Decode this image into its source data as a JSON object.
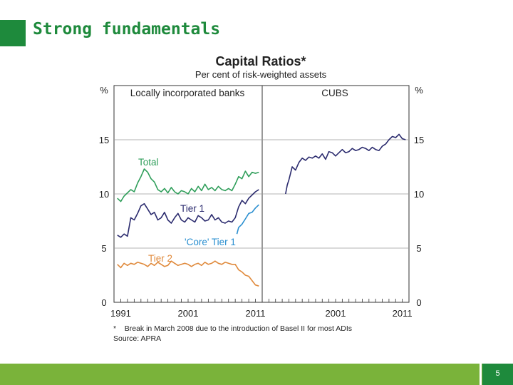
{
  "slide": {
    "title": "Strong fundamentals",
    "page_number": "5"
  },
  "colors": {
    "brand_green": "#1e8a3c",
    "footer_green": "#7ab33a",
    "total": "#2f9e5a",
    "tier1": "#2b2b6e",
    "core": "#2a8fd0",
    "tier2": "#e08a3c",
    "cubs": "#2b2b6e"
  },
  "chart_data": {
    "type": "line",
    "title": "Capital Ratios*",
    "subtitle": "Per cent of risk-weighted assets",
    "ylabel_left": "%",
    "ylabel_right": "%",
    "ylim": [
      0,
      20
    ],
    "yticks": [
      "0",
      "5",
      "10",
      "15"
    ],
    "yticks_right": [
      "0",
      "5",
      "10",
      "15"
    ],
    "grid": true,
    "footnote": "*    Break in March 2008 due to the introduction of Basel II for most ADIs",
    "source": "Source: APRA",
    "panels": [
      {
        "title": "Locally incorporated banks",
        "xlim": [
          1990,
          2012
        ],
        "xticks": [
          "1991",
          "2001",
          "2011"
        ],
        "series": [
          {
            "name": "Total",
            "x": [
              1990.5,
              1991,
              1991.5,
              1992,
              1992.5,
              1993,
              1993.5,
              1994,
              1994.5,
              1995,
              1995.5,
              1996,
              1996.5,
              1997,
              1997.5,
              1998,
              1998.5,
              1999,
              1999.5,
              2000,
              2000.5,
              2001,
              2001.5,
              2002,
              2002.5,
              2003,
              2003.5,
              2004,
              2004.5,
              2005,
              2005.5,
              2006,
              2006.5,
              2007,
              2007.5,
              2008,
              2008.5,
              2009,
              2009.5,
              2010,
              2010.5,
              2011,
              2011.5
            ],
            "y": [
              9.6,
              9.3,
              9.8,
              10.1,
              10.4,
              10.2,
              11.0,
              11.6,
              12.3,
              12.0,
              11.4,
              11.1,
              10.4,
              10.2,
              10.5,
              10.1,
              10.6,
              10.2,
              10.0,
              10.3,
              10.2,
              10.0,
              10.5,
              10.2,
              10.7,
              10.3,
              10.9,
              10.4,
              10.6,
              10.3,
              10.7,
              10.4,
              10.3,
              10.5,
              10.3,
              10.9,
              11.6,
              11.4,
              12.1,
              11.6,
              12.0,
              11.9,
              12.0
            ]
          },
          {
            "name": "Tier 1",
            "x": [
              1990.5,
              1991,
              1991.5,
              1992,
              1992.5,
              1993,
              1993.5,
              1994,
              1994.5,
              1995,
              1995.5,
              1996,
              1996.5,
              1997,
              1997.5,
              1998,
              1998.5,
              1999,
              1999.5,
              2000,
              2000.5,
              2001,
              2001.5,
              2002,
              2002.5,
              2003,
              2003.5,
              2004,
              2004.5,
              2005,
              2005.5,
              2006,
              2006.5,
              2007,
              2007.5,
              2008,
              2008.5,
              2009,
              2009.5,
              2010,
              2010.5,
              2011,
              2011.5
            ],
            "y": [
              6.2,
              6.0,
              6.3,
              6.1,
              7.8,
              7.6,
              8.2,
              8.9,
              9.1,
              8.6,
              8.1,
              8.3,
              7.6,
              7.8,
              8.3,
              7.6,
              7.3,
              7.8,
              8.2,
              7.6,
              7.4,
              7.8,
              7.6,
              7.4,
              8.0,
              7.8,
              7.5,
              7.6,
              8.1,
              7.6,
              7.8,
              7.4,
              7.3,
              7.5,
              7.4,
              7.8,
              8.8,
              9.4,
              9.1,
              9.6,
              9.9,
              10.2,
              10.4
            ]
          },
          {
            "name": "'Core' Tier 1",
            "x": [
              2008.25,
              2008.5,
              2009,
              2009.5,
              2010,
              2010.5,
              2011,
              2011.5
            ],
            "y": [
              6.3,
              6.9,
              7.2,
              7.7,
              8.2,
              8.3,
              8.7,
              9.0
            ]
          },
          {
            "name": "Tier 2",
            "x": [
              1990.5,
              1991,
              1991.5,
              1992,
              1992.5,
              1993,
              1993.5,
              1994,
              1994.5,
              1995,
              1995.5,
              1996,
              1996.5,
              1997,
              1997.5,
              1998,
              1998.5,
              1999,
              1999.5,
              2000,
              2000.5,
              2001,
              2001.5,
              2002,
              2002.5,
              2003,
              2003.5,
              2004,
              2004.5,
              2005,
              2005.5,
              2006,
              2006.5,
              2007,
              2007.5,
              2008,
              2008.5,
              2009,
              2009.5,
              2010,
              2010.5,
              2011,
              2011.5
            ],
            "y": [
              3.5,
              3.2,
              3.6,
              3.4,
              3.6,
              3.5,
              3.7,
              3.6,
              3.5,
              3.3,
              3.6,
              3.4,
              3.7,
              3.5,
              3.3,
              3.4,
              3.8,
              3.6,
              3.4,
              3.5,
              3.6,
              3.5,
              3.3,
              3.5,
              3.6,
              3.4,
              3.7,
              3.5,
              3.6,
              3.8,
              3.6,
              3.5,
              3.7,
              3.6,
              3.5,
              3.5,
              3.0,
              2.8,
              2.5,
              2.4,
              2.0,
              1.6,
              1.5
            ]
          }
        ]
      },
      {
        "title": "CUBS",
        "xlim": [
          1990,
          2012
        ],
        "xticks": [
          "2001",
          "2011"
        ],
        "series": [
          {
            "name": "",
            "x": [
              1993.5,
              1993.75,
              1994,
              1994.5,
              1995,
              1995.5,
              1996,
              1996.5,
              1997,
              1997.5,
              1998,
              1998.5,
              1999,
              1999.5,
              2000,
              2000.5,
              2001,
              2001.5,
              2002,
              2002.5,
              2003,
              2003.5,
              2004,
              2004.5,
              2005,
              2005.5,
              2006,
              2006.5,
              2007,
              2007.5,
              2008,
              2008.5,
              2009,
              2009.5,
              2010,
              2010.5,
              2011,
              2011.5
            ],
            "y": [
              10.0,
              10.8,
              11.3,
              12.5,
              12.2,
              12.9,
              13.3,
              13.1,
              13.4,
              13.3,
              13.5,
              13.3,
              13.7,
              13.2,
              13.9,
              13.8,
              13.5,
              13.8,
              14.1,
              13.8,
              13.9,
              14.2,
              14.0,
              14.1,
              14.3,
              14.2,
              14.0,
              14.3,
              14.1,
              14.0,
              14.4,
              14.6,
              15.0,
              15.3,
              15.2,
              15.5,
              15.1,
              15.0
            ]
          }
        ]
      }
    ]
  }
}
